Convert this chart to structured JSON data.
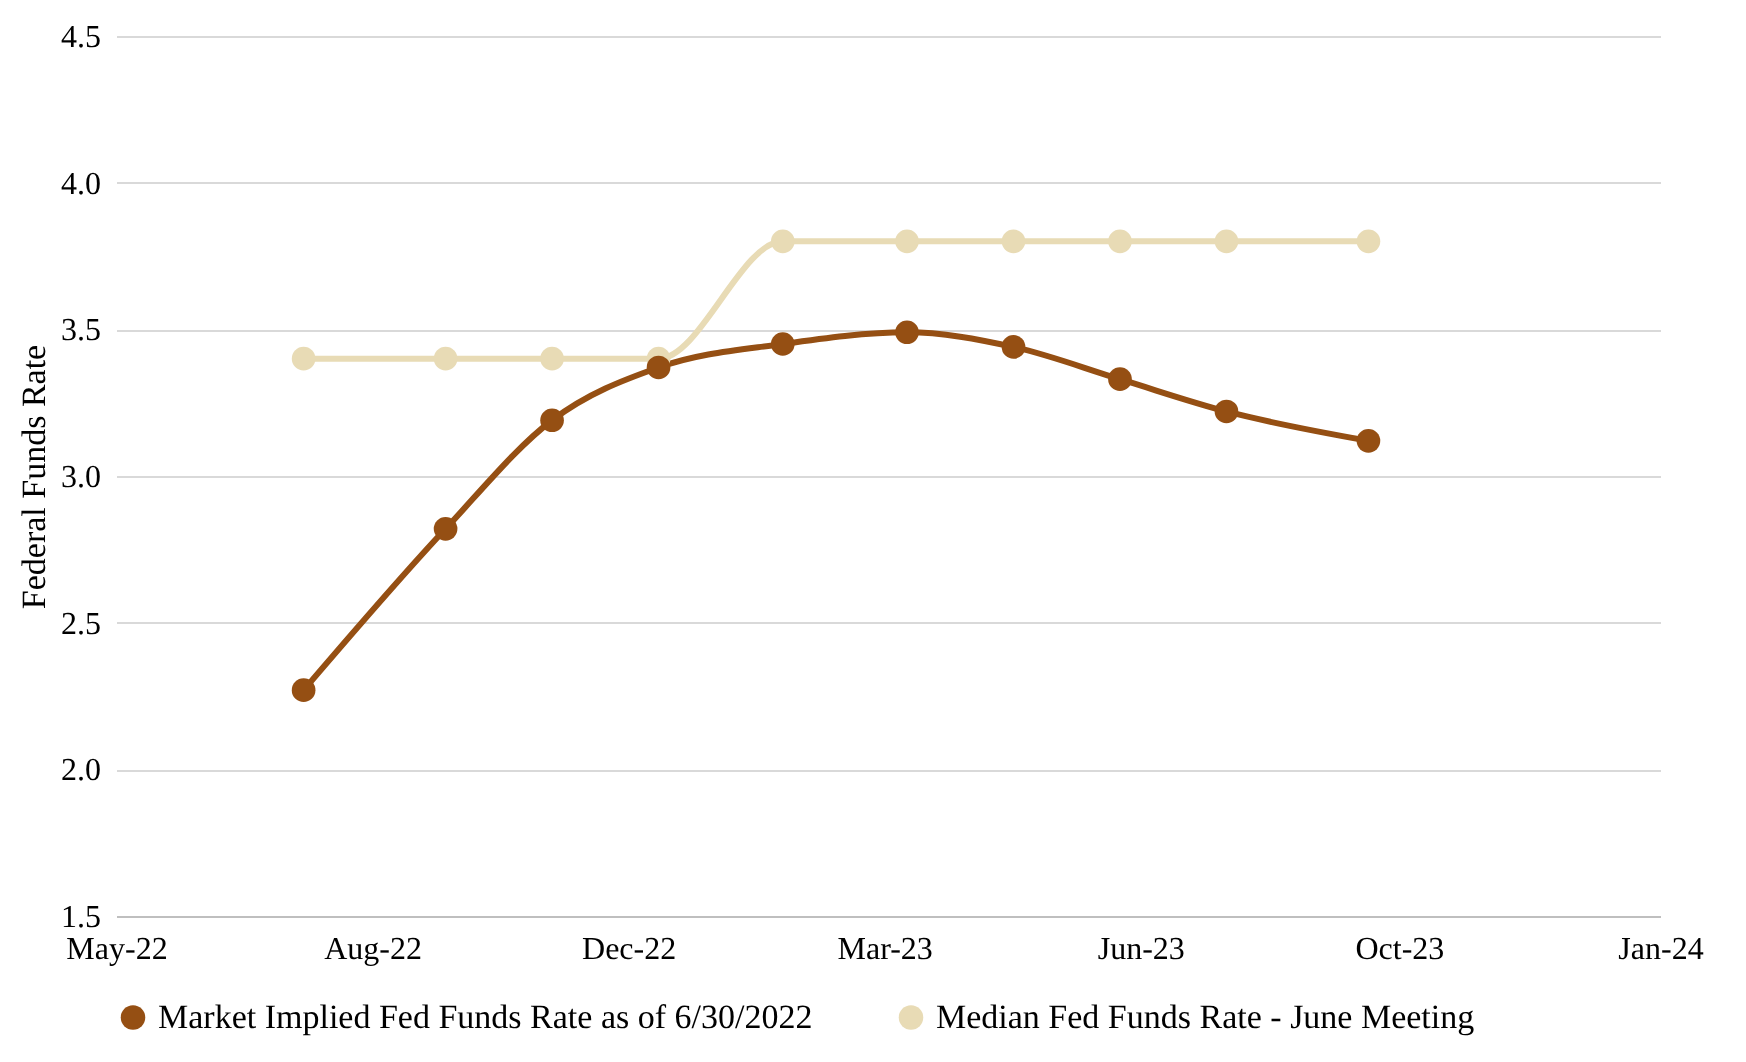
{
  "chart_data": {
    "type": "line",
    "ylabel": "Federal Funds Rate",
    "x": [
      "2022-07-27",
      "2022-09-21",
      "2022-11-02",
      "2022-12-14",
      "2023-02-01",
      "2023-03-22",
      "2023-05-03",
      "2023-06-14",
      "2023-07-26",
      "2023-09-20"
    ],
    "series": [
      {
        "name": "Market Implied Fed Funds Rate as of 6/30/2022",
        "color": "#954f13",
        "values": [
          2.27,
          2.82,
          3.19,
          3.37,
          3.45,
          3.49,
          3.44,
          3.33,
          3.22,
          3.12
        ]
      },
      {
        "name": "Median Fed Funds Rate - June Meeting",
        "color": "#e8dbb5",
        "values": [
          3.4,
          3.4,
          3.4,
          3.4,
          3.8,
          3.8,
          3.8,
          3.8,
          3.8,
          3.8
        ]
      }
    ],
    "xlim": [
      "2022-05-14",
      "2024-01-13"
    ],
    "xticks": [
      {
        "value": "2022-05-14",
        "label": "May-22"
      },
      {
        "value": "2022-08-23",
        "label": "Aug-22"
      },
      {
        "value": "2022-12-02",
        "label": "Dec-22"
      },
      {
        "value": "2023-03-13",
        "label": "Mar-23"
      },
      {
        "value": "2023-06-22",
        "label": "Jun-23"
      },
      {
        "value": "2023-10-02",
        "label": "Oct-23"
      },
      {
        "value": "2024-01-13",
        "label": "Jan-24"
      }
    ],
    "ylim": [
      1.5,
      4.5
    ],
    "yticks": [
      {
        "value": 1.5,
        "label": "1.5"
      },
      {
        "value": 2,
        "label": "2.0"
      },
      {
        "value": 2.5,
        "label": "2.5"
      },
      {
        "value": 3,
        "label": "3.0"
      },
      {
        "value": 3.5,
        "label": "3.5"
      },
      {
        "value": 4,
        "label": "4.0"
      },
      {
        "value": 4.5,
        "label": "4.5"
      }
    ],
    "grid": "y",
    "legend": "bottom",
    "marker": "circle",
    "line_style": "solid"
  }
}
